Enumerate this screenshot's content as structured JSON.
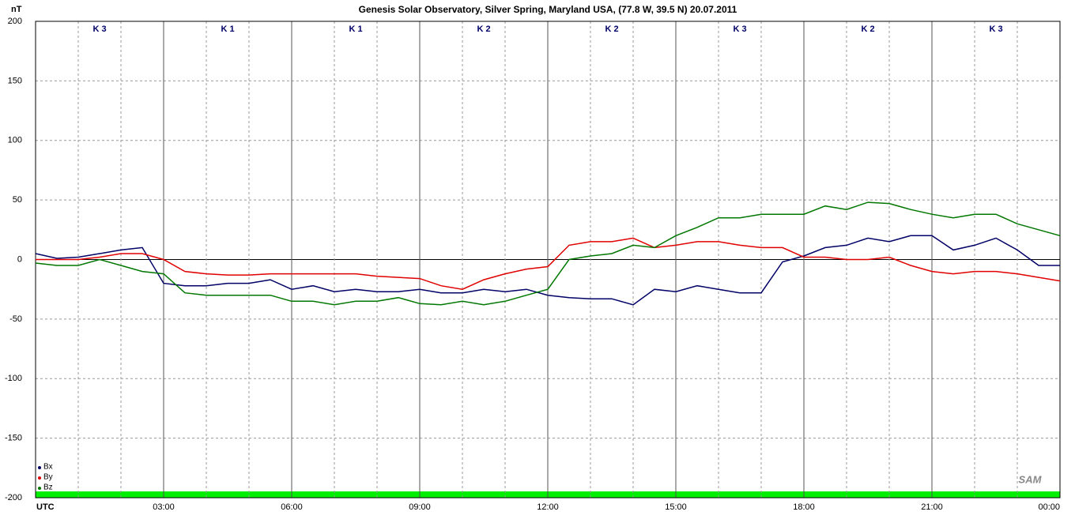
{
  "chart_data": {
    "type": "line",
    "title": "Genesis Solar Observatory, Silver Spring, Maryland USA, (77.8 W, 39.5 N)  20.07.2011",
    "y_label": "nT",
    "logo": "SAM",
    "x": [
      0,
      0.5,
      1,
      1.5,
      2,
      2.5,
      3,
      3.5,
      4,
      4.5,
      5,
      5.5,
      6,
      6.5,
      7,
      7.5,
      8,
      8.5,
      9,
      9.5,
      10,
      10.5,
      11,
      11.5,
      12,
      12.5,
      13,
      13.5,
      14,
      14.5,
      15,
      15.5,
      16,
      16.5,
      17,
      17.5,
      18,
      18.5,
      19,
      19.5,
      20,
      20.5,
      21,
      21.5,
      22,
      22.5,
      23,
      23.5,
      24
    ],
    "series": [
      {
        "name": "Bx",
        "color": "#000066",
        "values": [
          5,
          1,
          2,
          5,
          8,
          10,
          -20,
          -22,
          -22,
          -20,
          -20,
          -17,
          -25,
          -22,
          -27,
          -25,
          -27,
          -27,
          -25,
          -28,
          -28,
          -25,
          -27,
          -25,
          -30,
          -32,
          -33,
          -33,
          -38,
          -25,
          -27,
          -22,
          -25,
          -28,
          -28,
          -2,
          3,
          10,
          12,
          18,
          15,
          20,
          20,
          8,
          12,
          18,
          8,
          -5,
          -5
        ]
      },
      {
        "name": "By",
        "color": "#e00000",
        "values": [
          0,
          0,
          0,
          2,
          5,
          5,
          0,
          -10,
          -12,
          -13,
          -13,
          -12,
          -12,
          -12,
          -12,
          -12,
          -14,
          -15,
          -16,
          -22,
          -25,
          -17,
          -12,
          -8,
          -6,
          12,
          15,
          15,
          18,
          10,
          12,
          15,
          15,
          12,
          10,
          10,
          2,
          2,
          0,
          0,
          2,
          -5,
          -10,
          -12,
          -10,
          -10,
          -12,
          -15,
          -18
        ]
      },
      {
        "name": "Bz",
        "color": "#007700",
        "values": [
          -3,
          -5,
          -5,
          0,
          -5,
          -10,
          -12,
          -28,
          -30,
          -30,
          -30,
          -30,
          -35,
          -35,
          -38,
          -35,
          -35,
          -32,
          -37,
          -38,
          -35,
          -38,
          -35,
          -30,
          -25,
          0,
          3,
          5,
          12,
          10,
          20,
          27,
          35,
          35,
          38,
          38,
          38,
          45,
          42,
          48,
          47,
          42,
          38,
          35,
          38,
          38,
          30,
          25,
          20
        ]
      }
    ],
    "xlim": [
      0,
      24
    ],
    "xticks": [
      {
        "value": 0,
        "label": "UTC"
      },
      {
        "value": 3,
        "label": "03:00"
      },
      {
        "value": 6,
        "label": "06:00"
      },
      {
        "value": 9,
        "label": "09:00"
      },
      {
        "value": 12,
        "label": "12:00"
      },
      {
        "value": 15,
        "label": "15:00"
      },
      {
        "value": 18,
        "label": "18:00"
      },
      {
        "value": 21,
        "label": "21:00"
      },
      {
        "value": 24,
        "label": "00:00"
      }
    ],
    "x_minor_ticks": [
      1,
      2,
      4,
      5,
      7,
      8,
      10,
      11,
      13,
      14,
      16,
      17,
      19,
      20,
      22,
      23
    ],
    "ylim": [
      -200,
      200
    ],
    "yticks": [
      200,
      150,
      100,
      50,
      0,
      -50,
      -100,
      -150,
      -200
    ],
    "k_index": [
      "K 3",
      "K 1",
      "K 1",
      "K 2",
      "K 2",
      "K 3",
      "K 2",
      "K 3"
    ],
    "grid": true,
    "legend": "bottom-left"
  }
}
